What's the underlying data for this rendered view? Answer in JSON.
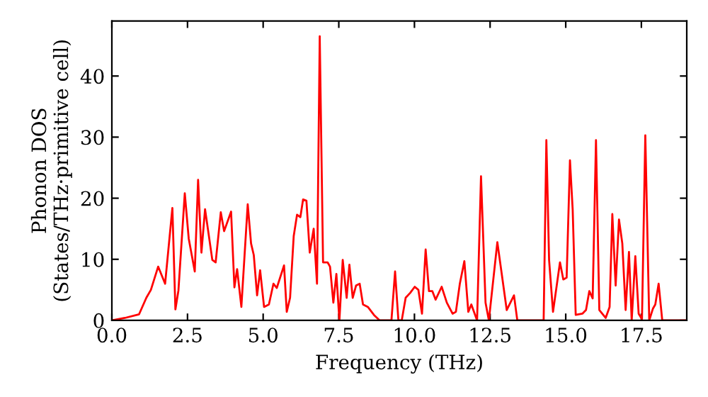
{
  "chart_data": {
    "type": "line",
    "xlabel": "Frequency (THz)",
    "ylabel": "Phonon DOS\n(States/THz·primitive cell)",
    "xlim": [
      0,
      19
    ],
    "ylim": [
      0,
      49
    ],
    "xticks": [
      {
        "value": 0,
        "label": "0.0"
      },
      2.5,
      {
        "value": 5,
        "label": "5.0"
      },
      7.5,
      {
        "value": 10,
        "label": "10.0"
      },
      12.5,
      {
        "value": 15,
        "label": "15.0"
      },
      17.5
    ],
    "yticks": [
      0,
      10,
      20,
      30,
      40
    ],
    "grid": false,
    "legend": false,
    "series": [
      {
        "color": "#ff0000",
        "x": [
          0,
          0.43,
          0.9,
          1.14,
          1.29,
          1.53,
          1.76,
          2.0,
          2.1,
          2.2,
          2.41,
          2.54,
          2.74,
          2.85,
          2.96,
          3.08,
          3.32,
          3.43,
          3.6,
          3.71,
          3.94,
          4.05,
          4.14,
          4.28,
          4.49,
          4.6,
          4.69,
          4.8,
          4.9,
          5.03,
          5.19,
          5.34,
          5.45,
          5.69,
          5.78,
          5.89,
          6.01,
          6.12,
          6.23,
          6.32,
          6.43,
          6.54,
          6.67,
          6.78,
          6.87,
          6.98,
          7.13,
          7.21,
          7.32,
          7.42,
          7.52,
          7.63,
          7.76,
          7.85,
          7.96,
          8.07,
          8.19,
          8.3,
          8.46,
          8.66,
          8.85,
          9.24,
          9.36,
          9.47,
          9.58,
          9.71,
          9.86,
          10.01,
          10.13,
          10.25,
          10.37,
          10.48,
          10.59,
          10.7,
          10.9,
          11.07,
          11.26,
          11.37,
          11.5,
          11.65,
          11.78,
          11.88,
          12.07,
          12.2,
          12.35,
          12.46,
          12.74,
          13.05,
          13.29,
          13.4,
          14.27,
          14.36,
          14.45,
          14.58,
          14.81,
          14.92,
          15.03,
          15.14,
          15.23,
          15.33,
          15.55,
          15.67,
          15.78,
          15.89,
          16.0,
          16.11,
          16.32,
          16.45,
          16.54,
          16.65,
          16.76,
          16.87,
          16.98,
          17.09,
          17.18,
          17.3,
          17.41,
          17.52,
          17.63,
          17.76,
          17.88,
          17.96,
          18.07,
          18.19,
          19.0
        ],
        "values": [
          0,
          0.4,
          1.0,
          3.7,
          5.0,
          8.8,
          6.0,
          18.4,
          1.8,
          4.9,
          20.8,
          13.4,
          8.0,
          23.0,
          11.1,
          18.2,
          9.9,
          9.5,
          17.7,
          14.6,
          17.8,
          5.4,
          8.4,
          2.2,
          19.0,
          12.6,
          10.7,
          4.1,
          8.2,
          2.2,
          2.6,
          6.0,
          5.3,
          9.0,
          1.4,
          3.7,
          13.8,
          17.3,
          16.9,
          19.8,
          19.6,
          11.1,
          15.0,
          6.0,
          46.5,
          9.5,
          9.5,
          8.8,
          2.9,
          7.6,
          0,
          9.9,
          3.7,
          9.1,
          3.7,
          5.7,
          6.0,
          2.6,
          2.2,
          0.9,
          0,
          0,
          8.0,
          0,
          0,
          3.7,
          4.5,
          5.5,
          5.0,
          1.1,
          11.6,
          4.8,
          4.8,
          3.4,
          5.5,
          2.9,
          1.1,
          1.4,
          6.0,
          9.7,
          1.4,
          2.6,
          0,
          23.6,
          2.9,
          0,
          12.8,
          1.7,
          4.1,
          0,
          0,
          29.5,
          9.9,
          1.4,
          9.5,
          6.7,
          7.0,
          26.2,
          18.1,
          0.9,
          1.1,
          1.7,
          4.8,
          3.6,
          29.5,
          1.7,
          0.4,
          2.2,
          17.4,
          5.7,
          16.5,
          12.6,
          1.7,
          11.2,
          0,
          10.5,
          1.1,
          0.2,
          30.3,
          0,
          1.9,
          2.6,
          6.0,
          0,
          0
        ]
      }
    ]
  }
}
